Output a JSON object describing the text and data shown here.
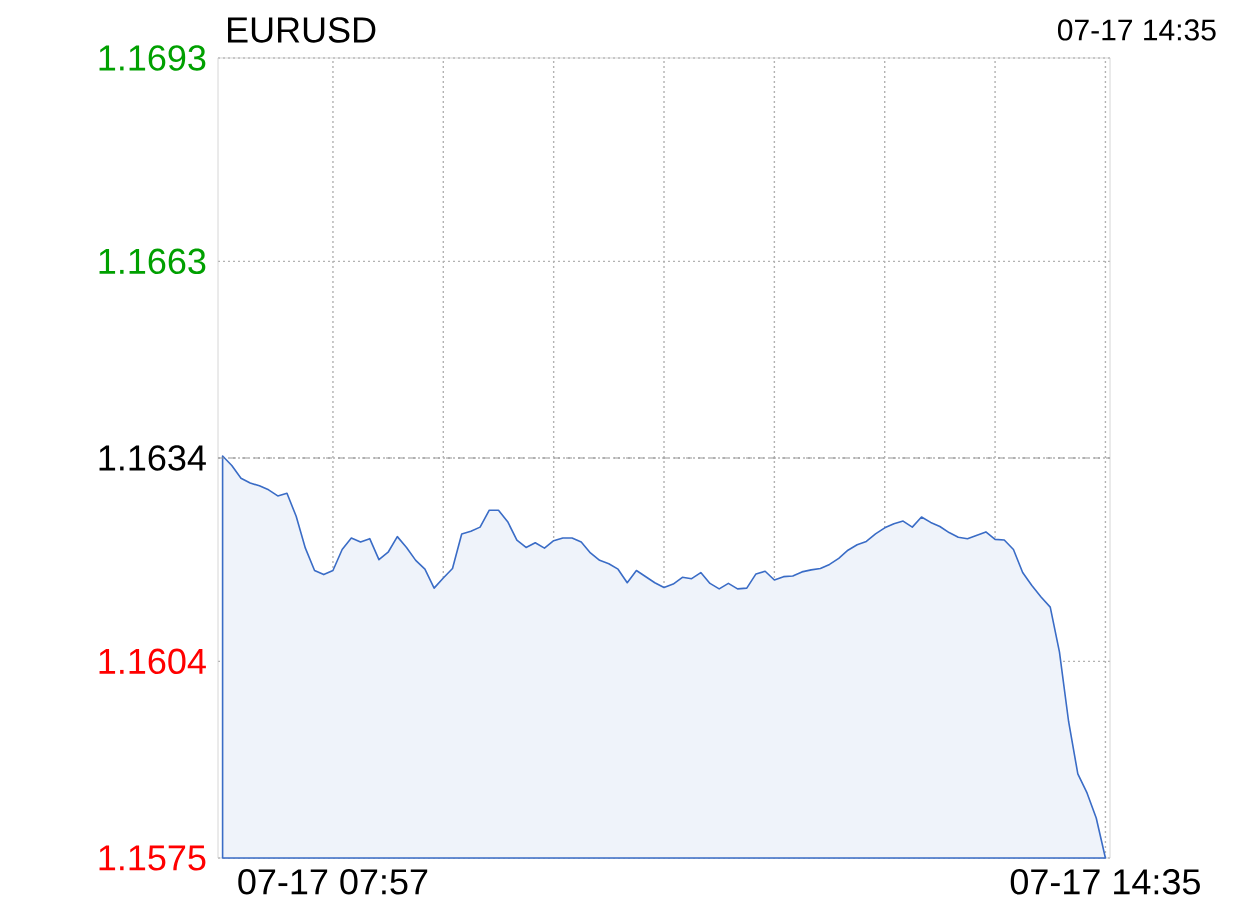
{
  "chart_data": {
    "type": "area",
    "title": "EURUSD",
    "subtitle": "07-17 14:35",
    "color": "#3a6cc6",
    "categories": [
      null,
      null,
      null,
      null,
      null,
      null,
      null,
      null,
      null,
      null,
      null,
      null,
      "07-17 07:57",
      null,
      null,
      null,
      null,
      null,
      null,
      null,
      null,
      null,
      null,
      null,
      null,
      null,
      null,
      null,
      null,
      null,
      null,
      null,
      null,
      null,
      null,
      null,
      null,
      null,
      null,
      null,
      null,
      null,
      null,
      null,
      null,
      null,
      null,
      null,
      null,
      null,
      null,
      null,
      null,
      null,
      null,
      null,
      null,
      null,
      null,
      null,
      null,
      null,
      null,
      null,
      null,
      null,
      null,
      null,
      null,
      null,
      null,
      null,
      null,
      null,
      null,
      null,
      null,
      null,
      null,
      null,
      null,
      null,
      null,
      null,
      null,
      null,
      null,
      null,
      null,
      null,
      null,
      null,
      null,
      null,
      null,
      null,
      "07-17 14:35"
    ],
    "values": [
      1.16343,
      1.16329,
      1.1631,
      1.16303,
      1.16299,
      1.16293,
      1.16284,
      1.16288,
      1.16254,
      1.16207,
      1.16174,
      1.16168,
      1.16174,
      1.16205,
      1.16222,
      1.16216,
      1.16221,
      1.1619,
      1.16201,
      1.16224,
      1.16208,
      1.16189,
      1.16176,
      1.16148,
      1.16163,
      1.16177,
      1.16228,
      1.16232,
      1.16238,
      1.16263,
      1.16263,
      1.16246,
      1.16219,
      1.16208,
      1.16215,
      1.16207,
      1.16218,
      1.16222,
      1.16222,
      1.16216,
      1.162,
      1.16189,
      1.16184,
      1.16176,
      1.16156,
      1.16174,
      1.16165,
      1.16156,
      1.16149,
      1.16154,
      1.16164,
      1.16162,
      1.16171,
      1.16155,
      1.16147,
      1.16155,
      1.16147,
      1.16148,
      1.16169,
      1.16173,
      1.1616,
      1.16165,
      1.16166,
      1.16172,
      1.16175,
      1.16177,
      1.16183,
      1.16192,
      1.16204,
      1.16212,
      1.16217,
      1.16228,
      1.16237,
      1.16243,
      1.16247,
      1.16238,
      1.16253,
      1.16245,
      1.16239,
      1.1623,
      1.16223,
      1.16221,
      1.16226,
      1.16231,
      1.1622,
      1.16219,
      1.16205,
      1.16171,
      1.16152,
      1.16135,
      1.1612,
      1.16054,
      1.15951,
      1.15874,
      1.15846,
      1.15809,
      1.1575
    ],
    "ylim": [
      1.1575,
      1.1693
    ],
    "yticks": [
      1.1575,
      1.1604,
      1.1634,
      1.1663,
      1.1693
    ],
    "ref_lines": [
      {
        "axis": "y",
        "value": 1.1634,
        "color": "#999999",
        "line_style": "dashed"
      }
    ],
    "grid": true
  }
}
